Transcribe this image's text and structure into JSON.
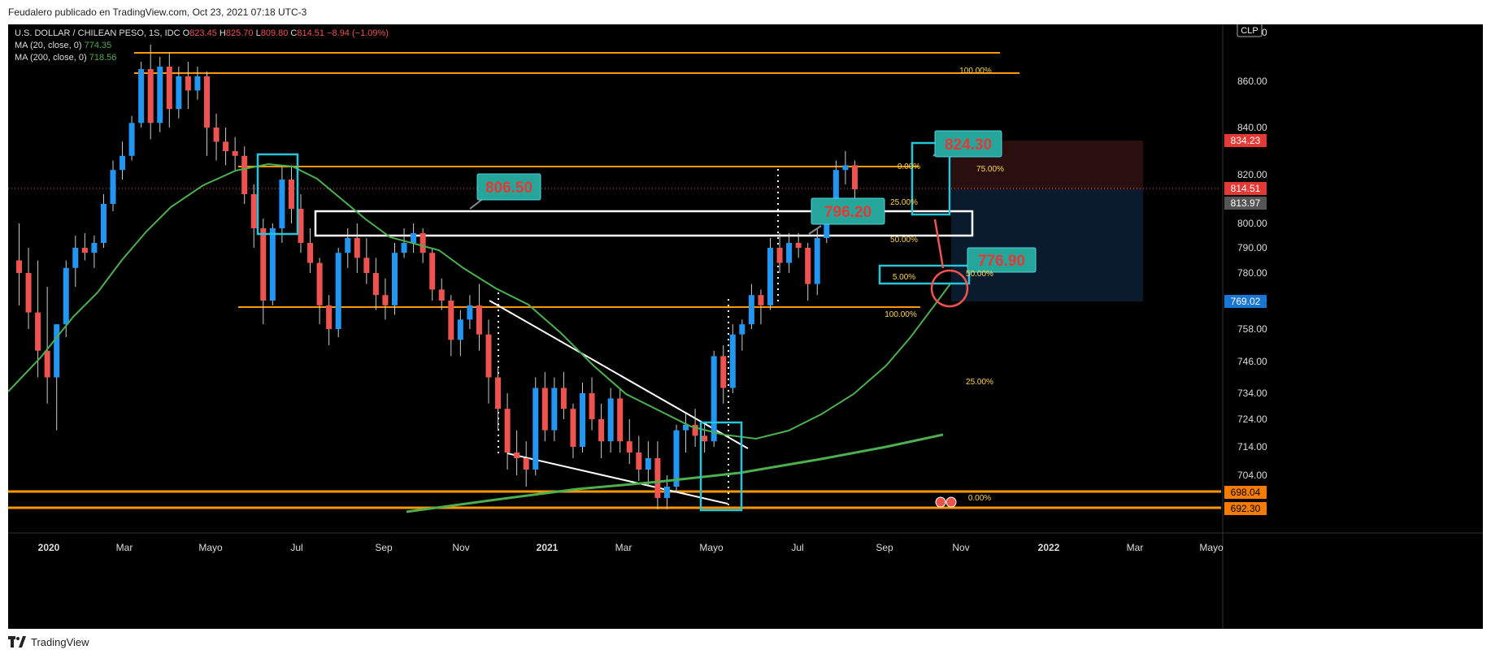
{
  "header_note": "Feudalero publicado en TradingView.com, Oct 23, 2021 07:18 UTC-3",
  "footer_brand": "TradingView",
  "legend": {
    "symbol": "U.S. DOLLAR / CHILEAN PESO, 1S, IDC",
    "o_label": "O",
    "o": "823.45",
    "h_label": "H",
    "h": "825.70",
    "l_label": "L",
    "l": "809.80",
    "c_label": "C",
    "c": "814.51",
    "change": "−8.94 (−1.09%)",
    "ma20_label": "MA (20, close, 0)",
    "ma20_value": "774.35",
    "ma200_label": "MA (200, close, 0)",
    "ma200_value": "718.56"
  },
  "currency_badge": "CLP",
  "colors": {
    "up": "#2196f3",
    "down": "#ef5350",
    "ma20": "#4caf50",
    "level": "#ff9800",
    "box": "#26c6da"
  },
  "chart_data": {
    "type": "candlestick",
    "y_ticks": [
      "880.00",
      "860.00",
      "840.00",
      "820.00",
      "800.00",
      "790.00",
      "780.00",
      "770.00",
      "758.00",
      "746.00",
      "734.00",
      "724.00",
      "714.00",
      "704.00",
      "698.00",
      "692.30"
    ],
    "x_ticks": [
      "2020",
      "Mar",
      "Mayo",
      "Jul",
      "Sep",
      "Nov",
      "2021",
      "Mar",
      "Mayo",
      "Jul",
      "Sep",
      "Nov",
      "2022",
      "Mar",
      "Mayo"
    ],
    "price_tags": [
      {
        "text": "834.23",
        "kind": "red"
      },
      {
        "text": "814.51",
        "kind": "red"
      },
      {
        "text": "813.97",
        "kind": "gray"
      },
      {
        "text": "769.02",
        "kind": "blue"
      },
      {
        "text": "698.04",
        "kind": "orange"
      },
      {
        "text": "692.30",
        "kind": "orange"
      }
    ],
    "annotations": [
      "806.50",
      "796.20",
      "824.30",
      "776.90"
    ],
    "fib_labels": [
      "100.00%",
      "0.00%",
      "75.00%",
      "25.00%",
      "50.00%",
      "5.00%",
      "50.00%",
      "100.00%",
      "25.00%",
      "0.00%"
    ],
    "candles": [
      [
        785,
        800,
        768,
        780
      ],
      [
        780,
        790,
        758,
        765
      ],
      [
        765,
        785,
        740,
        750
      ],
      [
        750,
        775,
        730,
        740
      ],
      [
        740,
        760,
        720,
        760
      ],
      [
        760,
        785,
        755,
        782
      ],
      [
        782,
        795,
        775,
        790
      ],
      [
        790,
        796,
        785,
        788
      ],
      [
        788,
        795,
        782,
        792
      ],
      [
        792,
        812,
        790,
        808
      ],
      [
        808,
        826,
        805,
        822
      ],
      [
        822,
        834,
        818,
        828
      ],
      [
        828,
        845,
        826,
        842
      ],
      [
        842,
        868,
        840,
        865
      ],
      [
        865,
        875,
        835,
        842
      ],
      [
        842,
        870,
        838,
        866
      ],
      [
        866,
        872,
        840,
        848
      ],
      [
        848,
        866,
        844,
        862
      ],
      [
        862,
        868,
        848,
        856
      ],
      [
        856,
        866,
        852,
        862
      ],
      [
        862,
        864,
        828,
        840
      ],
      [
        840,
        846,
        826,
        834
      ],
      [
        834,
        840,
        824,
        830
      ],
      [
        830,
        836,
        822,
        828
      ],
      [
        828,
        832,
        808,
        812
      ],
      [
        812,
        816,
        790,
        798
      ],
      [
        798,
        802,
        760,
        770
      ],
      [
        770,
        800,
        768,
        798
      ],
      [
        798,
        824,
        792,
        818
      ],
      [
        818,
        824,
        800,
        806
      ],
      [
        806,
        812,
        788,
        792
      ],
      [
        792,
        798,
        780,
        784
      ],
      [
        784,
        786,
        760,
        768
      ],
      [
        768,
        772,
        752,
        758
      ],
      [
        758,
        790,
        755,
        788
      ],
      [
        788,
        798,
        782,
        794
      ],
      [
        794,
        800,
        780,
        786
      ],
      [
        786,
        794,
        776,
        780
      ],
      [
        780,
        786,
        766,
        772
      ],
      [
        772,
        778,
        762,
        768
      ],
      [
        768,
        792,
        764,
        788
      ],
      [
        788,
        798,
        786,
        792
      ],
      [
        792,
        800,
        788,
        796
      ],
      [
        796,
        798,
        784,
        788
      ],
      [
        788,
        790,
        770,
        774
      ],
      [
        774,
        778,
        766,
        770
      ],
      [
        770,
        772,
        748,
        754
      ],
      [
        754,
        766,
        748,
        762
      ],
      [
        762,
        772,
        758,
        768
      ],
      [
        768,
        776,
        750,
        756
      ],
      [
        756,
        762,
        730,
        740
      ],
      [
        740,
        744,
        720,
        728
      ],
      [
        728,
        734,
        706,
        712
      ],
      [
        712,
        720,
        704,
        710
      ],
      [
        710,
        716,
        700,
        706
      ],
      [
        706,
        740,
        704,
        736
      ],
      [
        736,
        742,
        716,
        720
      ],
      [
        720,
        740,
        716,
        736
      ],
      [
        736,
        742,
        724,
        728
      ],
      [
        728,
        730,
        710,
        714
      ],
      [
        714,
        738,
        712,
        734
      ],
      [
        734,
        740,
        720,
        724
      ],
      [
        724,
        730,
        710,
        716
      ],
      [
        716,
        736,
        712,
        732
      ],
      [
        732,
        736,
        712,
        716
      ],
      [
        716,
        724,
        708,
        712
      ],
      [
        712,
        718,
        702,
        706
      ],
      [
        706,
        716,
        700,
        710
      ],
      [
        710,
        716,
        692,
        696
      ],
      [
        696,
        704,
        692,
        700
      ],
      [
        700,
        722,
        698,
        720
      ],
      [
        720,
        726,
        712,
        722
      ],
      [
        722,
        728,
        714,
        718
      ],
      [
        718,
        722,
        712,
        716
      ],
      [
        716,
        750,
        714,
        748
      ],
      [
        748,
        752,
        730,
        736
      ],
      [
        736,
        760,
        734,
        756
      ],
      [
        756,
        762,
        750,
        760
      ],
      [
        760,
        776,
        758,
        772
      ],
      [
        772,
        774,
        760,
        768
      ],
      [
        768,
        794,
        766,
        790
      ],
      [
        790,
        796,
        780,
        784
      ],
      [
        784,
        796,
        780,
        792
      ],
      [
        792,
        796,
        786,
        790
      ],
      [
        790,
        792,
        770,
        776
      ],
      [
        776,
        798,
        772,
        794
      ],
      [
        794,
        808,
        792,
        804
      ],
      [
        804,
        826,
        802,
        822
      ],
      [
        822,
        830,
        816,
        824
      ],
      [
        824,
        826,
        810,
        814
      ]
    ]
  }
}
